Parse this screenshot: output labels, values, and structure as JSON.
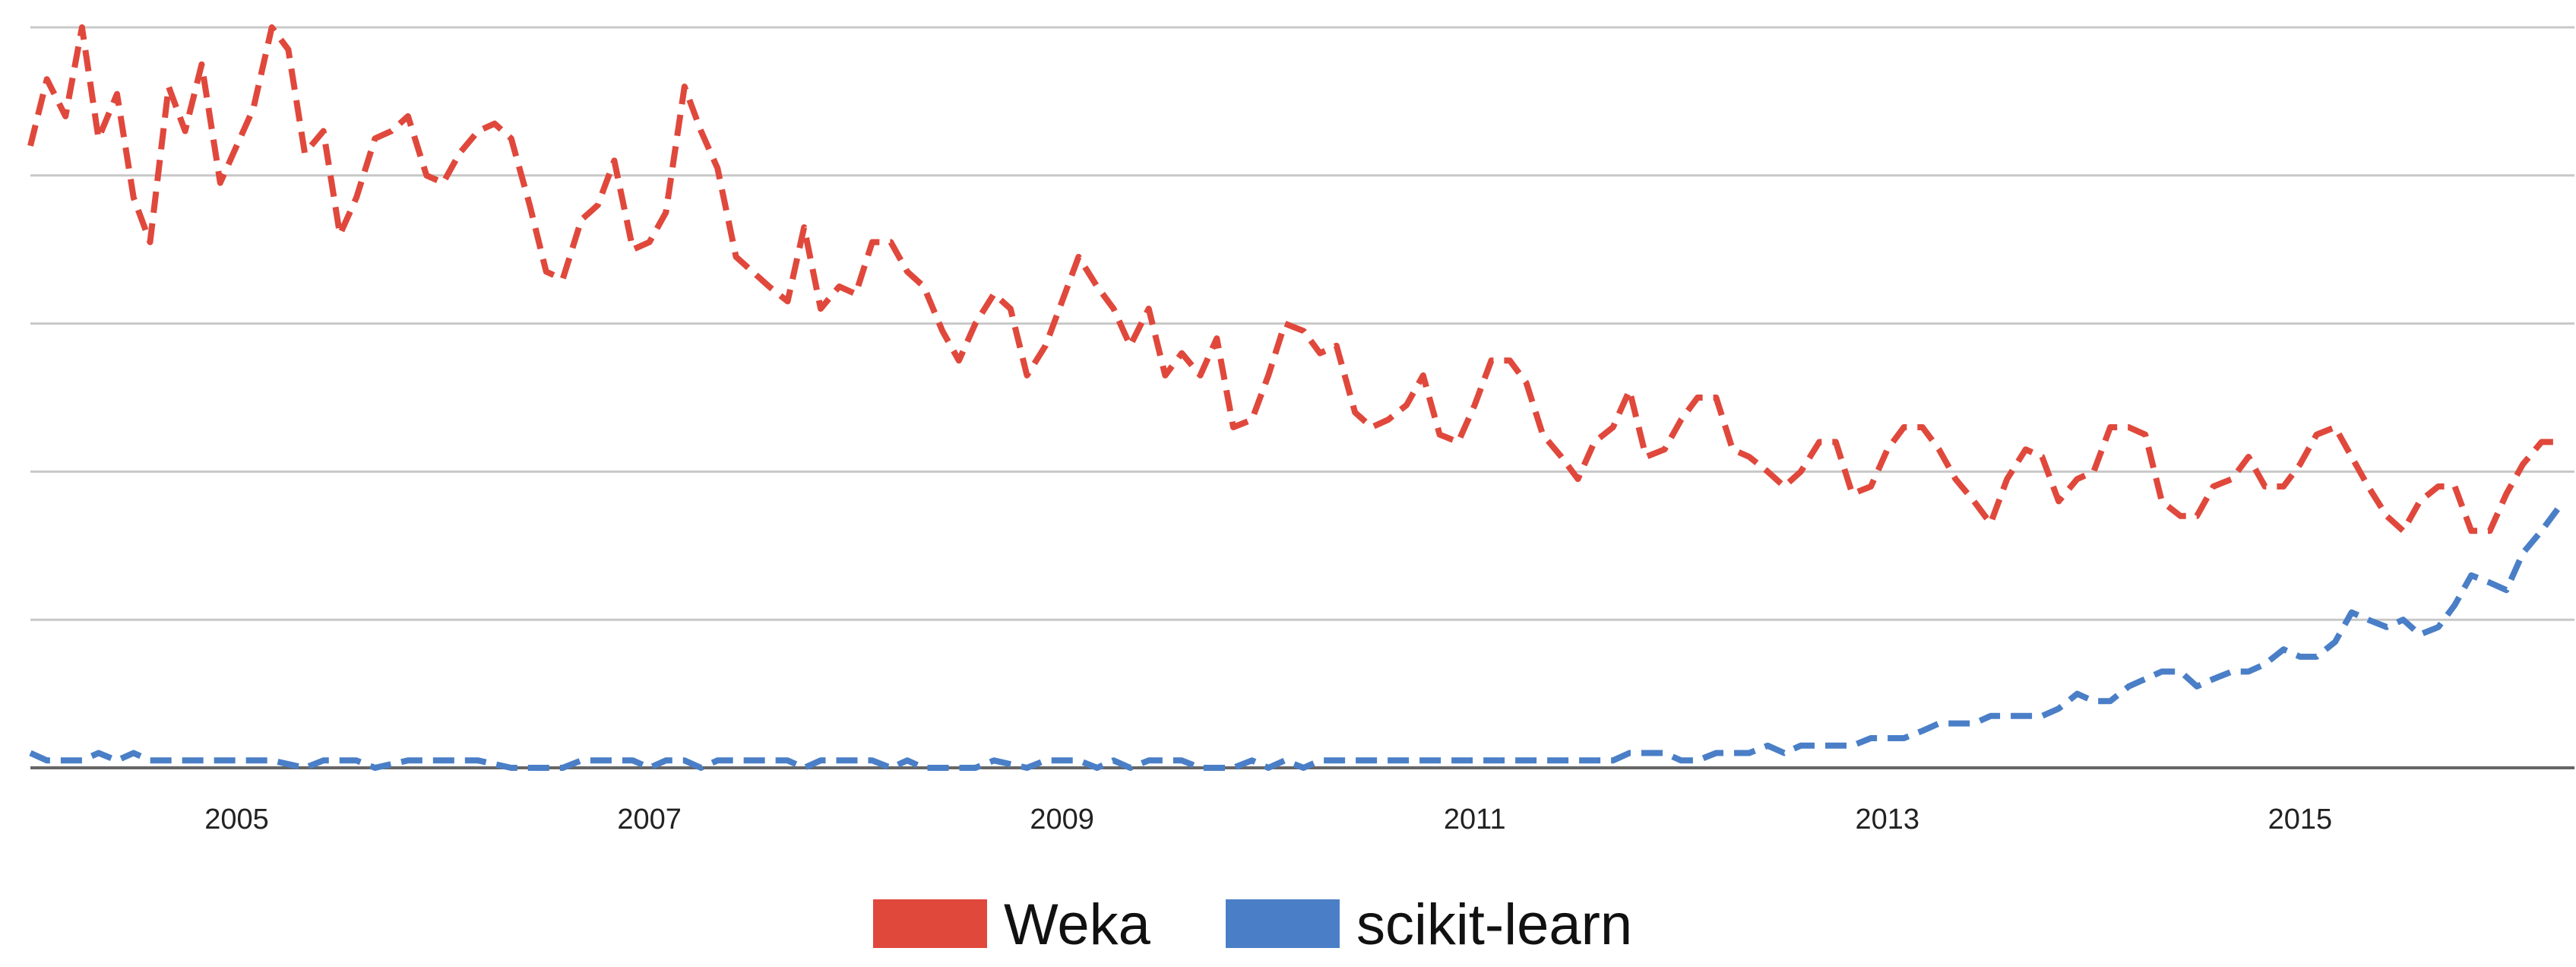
{
  "chart_data": {
    "type": "line",
    "title": "",
    "xlabel": "",
    "ylabel": "",
    "xlim": [
      2004.0,
      2016.33
    ],
    "ylim": [
      0,
      100
    ],
    "y_tick_values": [
      0,
      20,
      40,
      60,
      80,
      100
    ],
    "x_ticks": [
      {
        "value": 2005,
        "label": "2005"
      },
      {
        "value": 2007,
        "label": "2007"
      },
      {
        "value": 2009,
        "label": "2009"
      },
      {
        "value": 2011,
        "label": "2011"
      },
      {
        "value": 2013,
        "label": "2013"
      },
      {
        "value": 2015,
        "label": "2015"
      }
    ],
    "grid": true,
    "legend_position": "bottom-center",
    "line_style": "dashed",
    "series": [
      {
        "name": "Weka",
        "color": "#e0483c",
        "points": [
          [
            2004.0,
            84
          ],
          [
            2004.08,
            93
          ],
          [
            2004.17,
            88
          ],
          [
            2004.25,
            100
          ],
          [
            2004.33,
            85
          ],
          [
            2004.42,
            91
          ],
          [
            2004.5,
            77
          ],
          [
            2004.58,
            71
          ],
          [
            2004.67,
            92
          ],
          [
            2004.75,
            86
          ],
          [
            2004.83,
            95
          ],
          [
            2004.92,
            79
          ],
          [
            2005.0,
            84
          ],
          [
            2005.08,
            89
          ],
          [
            2005.17,
            100
          ],
          [
            2005.25,
            97
          ],
          [
            2005.33,
            83
          ],
          [
            2005.42,
            86
          ],
          [
            2005.5,
            72
          ],
          [
            2005.58,
            77
          ],
          [
            2005.67,
            85
          ],
          [
            2005.75,
            86
          ],
          [
            2005.83,
            88
          ],
          [
            2005.92,
            80
          ],
          [
            2006.0,
            79
          ],
          [
            2006.08,
            83
          ],
          [
            2006.17,
            86
          ],
          [
            2006.25,
            87
          ],
          [
            2006.33,
            85
          ],
          [
            2006.42,
            76
          ],
          [
            2006.5,
            67
          ],
          [
            2006.58,
            66
          ],
          [
            2006.67,
            74
          ],
          [
            2006.75,
            76
          ],
          [
            2006.83,
            82
          ],
          [
            2006.92,
            70
          ],
          [
            2007.0,
            71
          ],
          [
            2007.08,
            75
          ],
          [
            2007.17,
            92
          ],
          [
            2007.25,
            86
          ],
          [
            2007.33,
            81
          ],
          [
            2007.42,
            69
          ],
          [
            2007.5,
            67
          ],
          [
            2007.58,
            65
          ],
          [
            2007.67,
            63
          ],
          [
            2007.75,
            73
          ],
          [
            2007.83,
            62
          ],
          [
            2007.92,
            65
          ],
          [
            2008.0,
            64
          ],
          [
            2008.08,
            71
          ],
          [
            2008.17,
            71
          ],
          [
            2008.25,
            67
          ],
          [
            2008.33,
            65
          ],
          [
            2008.42,
            59
          ],
          [
            2008.5,
            55
          ],
          [
            2008.58,
            60
          ],
          [
            2008.67,
            64
          ],
          [
            2008.75,
            62
          ],
          [
            2008.83,
            53
          ],
          [
            2008.92,
            57
          ],
          [
            2009.0,
            63
          ],
          [
            2009.08,
            69
          ],
          [
            2009.17,
            65
          ],
          [
            2009.25,
            62
          ],
          [
            2009.33,
            57
          ],
          [
            2009.42,
            62
          ],
          [
            2009.5,
            53
          ],
          [
            2009.58,
            56
          ],
          [
            2009.67,
            53
          ],
          [
            2009.75,
            58
          ],
          [
            2009.83,
            46
          ],
          [
            2009.92,
            47
          ],
          [
            2010.0,
            53
          ],
          [
            2010.08,
            60
          ],
          [
            2010.17,
            59
          ],
          [
            2010.25,
            56
          ],
          [
            2010.33,
            57
          ],
          [
            2010.42,
            48
          ],
          [
            2010.5,
            46
          ],
          [
            2010.58,
            47
          ],
          [
            2010.67,
            49
          ],
          [
            2010.75,
            53
          ],
          [
            2010.83,
            45
          ],
          [
            2010.92,
            44
          ],
          [
            2011.0,
            49
          ],
          [
            2011.08,
            55
          ],
          [
            2011.17,
            55
          ],
          [
            2011.25,
            52
          ],
          [
            2011.33,
            45
          ],
          [
            2011.42,
            42
          ],
          [
            2011.5,
            39
          ],
          [
            2011.58,
            44
          ],
          [
            2011.67,
            46
          ],
          [
            2011.75,
            51
          ],
          [
            2011.83,
            42
          ],
          [
            2011.92,
            43
          ],
          [
            2012.0,
            47
          ],
          [
            2012.08,
            50
          ],
          [
            2012.17,
            50
          ],
          [
            2012.25,
            43
          ],
          [
            2012.33,
            42
          ],
          [
            2012.42,
            40
          ],
          [
            2012.5,
            38
          ],
          [
            2012.58,
            40
          ],
          [
            2012.67,
            44
          ],
          [
            2012.75,
            44
          ],
          [
            2012.83,
            37
          ],
          [
            2012.92,
            38
          ],
          [
            2013.0,
            43
          ],
          [
            2013.08,
            46
          ],
          [
            2013.17,
            46
          ],
          [
            2013.25,
            43
          ],
          [
            2013.33,
            39
          ],
          [
            2013.42,
            36
          ],
          [
            2013.5,
            33
          ],
          [
            2013.58,
            39
          ],
          [
            2013.67,
            43
          ],
          [
            2013.75,
            42
          ],
          [
            2013.83,
            36
          ],
          [
            2013.92,
            39
          ],
          [
            2014.0,
            40
          ],
          [
            2014.08,
            46
          ],
          [
            2014.17,
            46
          ],
          [
            2014.25,
            45
          ],
          [
            2014.33,
            36
          ],
          [
            2014.42,
            34
          ],
          [
            2014.5,
            34
          ],
          [
            2014.58,
            38
          ],
          [
            2014.67,
            39
          ],
          [
            2014.75,
            42
          ],
          [
            2014.83,
            38
          ],
          [
            2014.92,
            38
          ],
          [
            2015.0,
            41
          ],
          [
            2015.08,
            45
          ],
          [
            2015.17,
            46
          ],
          [
            2015.25,
            42
          ],
          [
            2015.33,
            38
          ],
          [
            2015.42,
            34
          ],
          [
            2015.5,
            32
          ],
          [
            2015.58,
            36
          ],
          [
            2015.67,
            38
          ],
          [
            2015.75,
            38
          ],
          [
            2015.83,
            32
          ],
          [
            2015.92,
            32
          ],
          [
            2016.0,
            37
          ],
          [
            2016.08,
            41
          ],
          [
            2016.17,
            44
          ],
          [
            2016.25,
            44
          ]
        ]
      },
      {
        "name": "scikit-learn",
        "color": "#4a7fc7",
        "points": [
          [
            2004.0,
            2
          ],
          [
            2004.08,
            1
          ],
          [
            2004.17,
            1
          ],
          [
            2004.25,
            1
          ],
          [
            2004.33,
            2
          ],
          [
            2004.42,
            1
          ],
          [
            2004.5,
            2
          ],
          [
            2004.58,
            1
          ],
          [
            2004.67,
            1
          ],
          [
            2005.0,
            1
          ],
          [
            2005.17,
            1
          ],
          [
            2005.33,
            0
          ],
          [
            2005.42,
            1
          ],
          [
            2005.58,
            1
          ],
          [
            2005.67,
            0
          ],
          [
            2005.83,
            1
          ],
          [
            2006.17,
            1
          ],
          [
            2006.33,
            0
          ],
          [
            2006.58,
            0
          ],
          [
            2006.67,
            1
          ],
          [
            2006.92,
            1
          ],
          [
            2007.0,
            0
          ],
          [
            2007.08,
            1
          ],
          [
            2007.17,
            1
          ],
          [
            2007.25,
            0
          ],
          [
            2007.33,
            1
          ],
          [
            2007.67,
            1
          ],
          [
            2007.75,
            0
          ],
          [
            2007.83,
            1
          ],
          [
            2008.08,
            1
          ],
          [
            2008.17,
            0
          ],
          [
            2008.25,
            1
          ],
          [
            2008.33,
            0
          ],
          [
            2008.5,
            0
          ],
          [
            2008.58,
            0
          ],
          [
            2008.67,
            1
          ],
          [
            2008.83,
            0
          ],
          [
            2008.92,
            1
          ],
          [
            2009.08,
            1
          ],
          [
            2009.17,
            0
          ],
          [
            2009.25,
            1
          ],
          [
            2009.33,
            0
          ],
          [
            2009.42,
            1
          ],
          [
            2009.58,
            1
          ],
          [
            2009.67,
            0
          ],
          [
            2009.83,
            0
          ],
          [
            2009.92,
            1
          ],
          [
            2010.0,
            0
          ],
          [
            2010.08,
            1
          ],
          [
            2010.17,
            0
          ],
          [
            2010.25,
            1
          ],
          [
            2011.0,
            1
          ],
          [
            2011.58,
            1
          ],
          [
            2011.67,
            1
          ],
          [
            2011.75,
            2
          ],
          [
            2011.83,
            2
          ],
          [
            2011.92,
            2
          ],
          [
            2012.0,
            1
          ],
          [
            2012.08,
            1
          ],
          [
            2012.17,
            2
          ],
          [
            2012.33,
            2
          ],
          [
            2012.42,
            3
          ],
          [
            2012.5,
            2
          ],
          [
            2012.58,
            3
          ],
          [
            2012.83,
            3
          ],
          [
            2012.92,
            4
          ],
          [
            2013.08,
            4
          ],
          [
            2013.17,
            5
          ],
          [
            2013.25,
            6
          ],
          [
            2013.42,
            6
          ],
          [
            2013.5,
            7
          ],
          [
            2013.75,
            7
          ],
          [
            2013.83,
            8
          ],
          [
            2013.92,
            10
          ],
          [
            2014.0,
            9
          ],
          [
            2014.08,
            9
          ],
          [
            2014.17,
            11
          ],
          [
            2014.25,
            12
          ],
          [
            2014.33,
            13
          ],
          [
            2014.42,
            13
          ],
          [
            2014.5,
            11
          ],
          [
            2014.58,
            12
          ],
          [
            2014.67,
            13
          ],
          [
            2014.75,
            13
          ],
          [
            2014.83,
            14
          ],
          [
            2014.92,
            16
          ],
          [
            2015.0,
            15
          ],
          [
            2015.08,
            15
          ],
          [
            2015.17,
            17
          ],
          [
            2015.25,
            21
          ],
          [
            2015.33,
            20
          ],
          [
            2015.42,
            19
          ],
          [
            2015.5,
            20
          ],
          [
            2015.58,
            18
          ],
          [
            2015.67,
            19
          ],
          [
            2015.75,
            22
          ],
          [
            2015.83,
            26
          ],
          [
            2015.92,
            25
          ],
          [
            2016.0,
            24
          ],
          [
            2016.08,
            29
          ],
          [
            2016.17,
            32
          ],
          [
            2016.25,
            35
          ]
        ]
      }
    ]
  }
}
